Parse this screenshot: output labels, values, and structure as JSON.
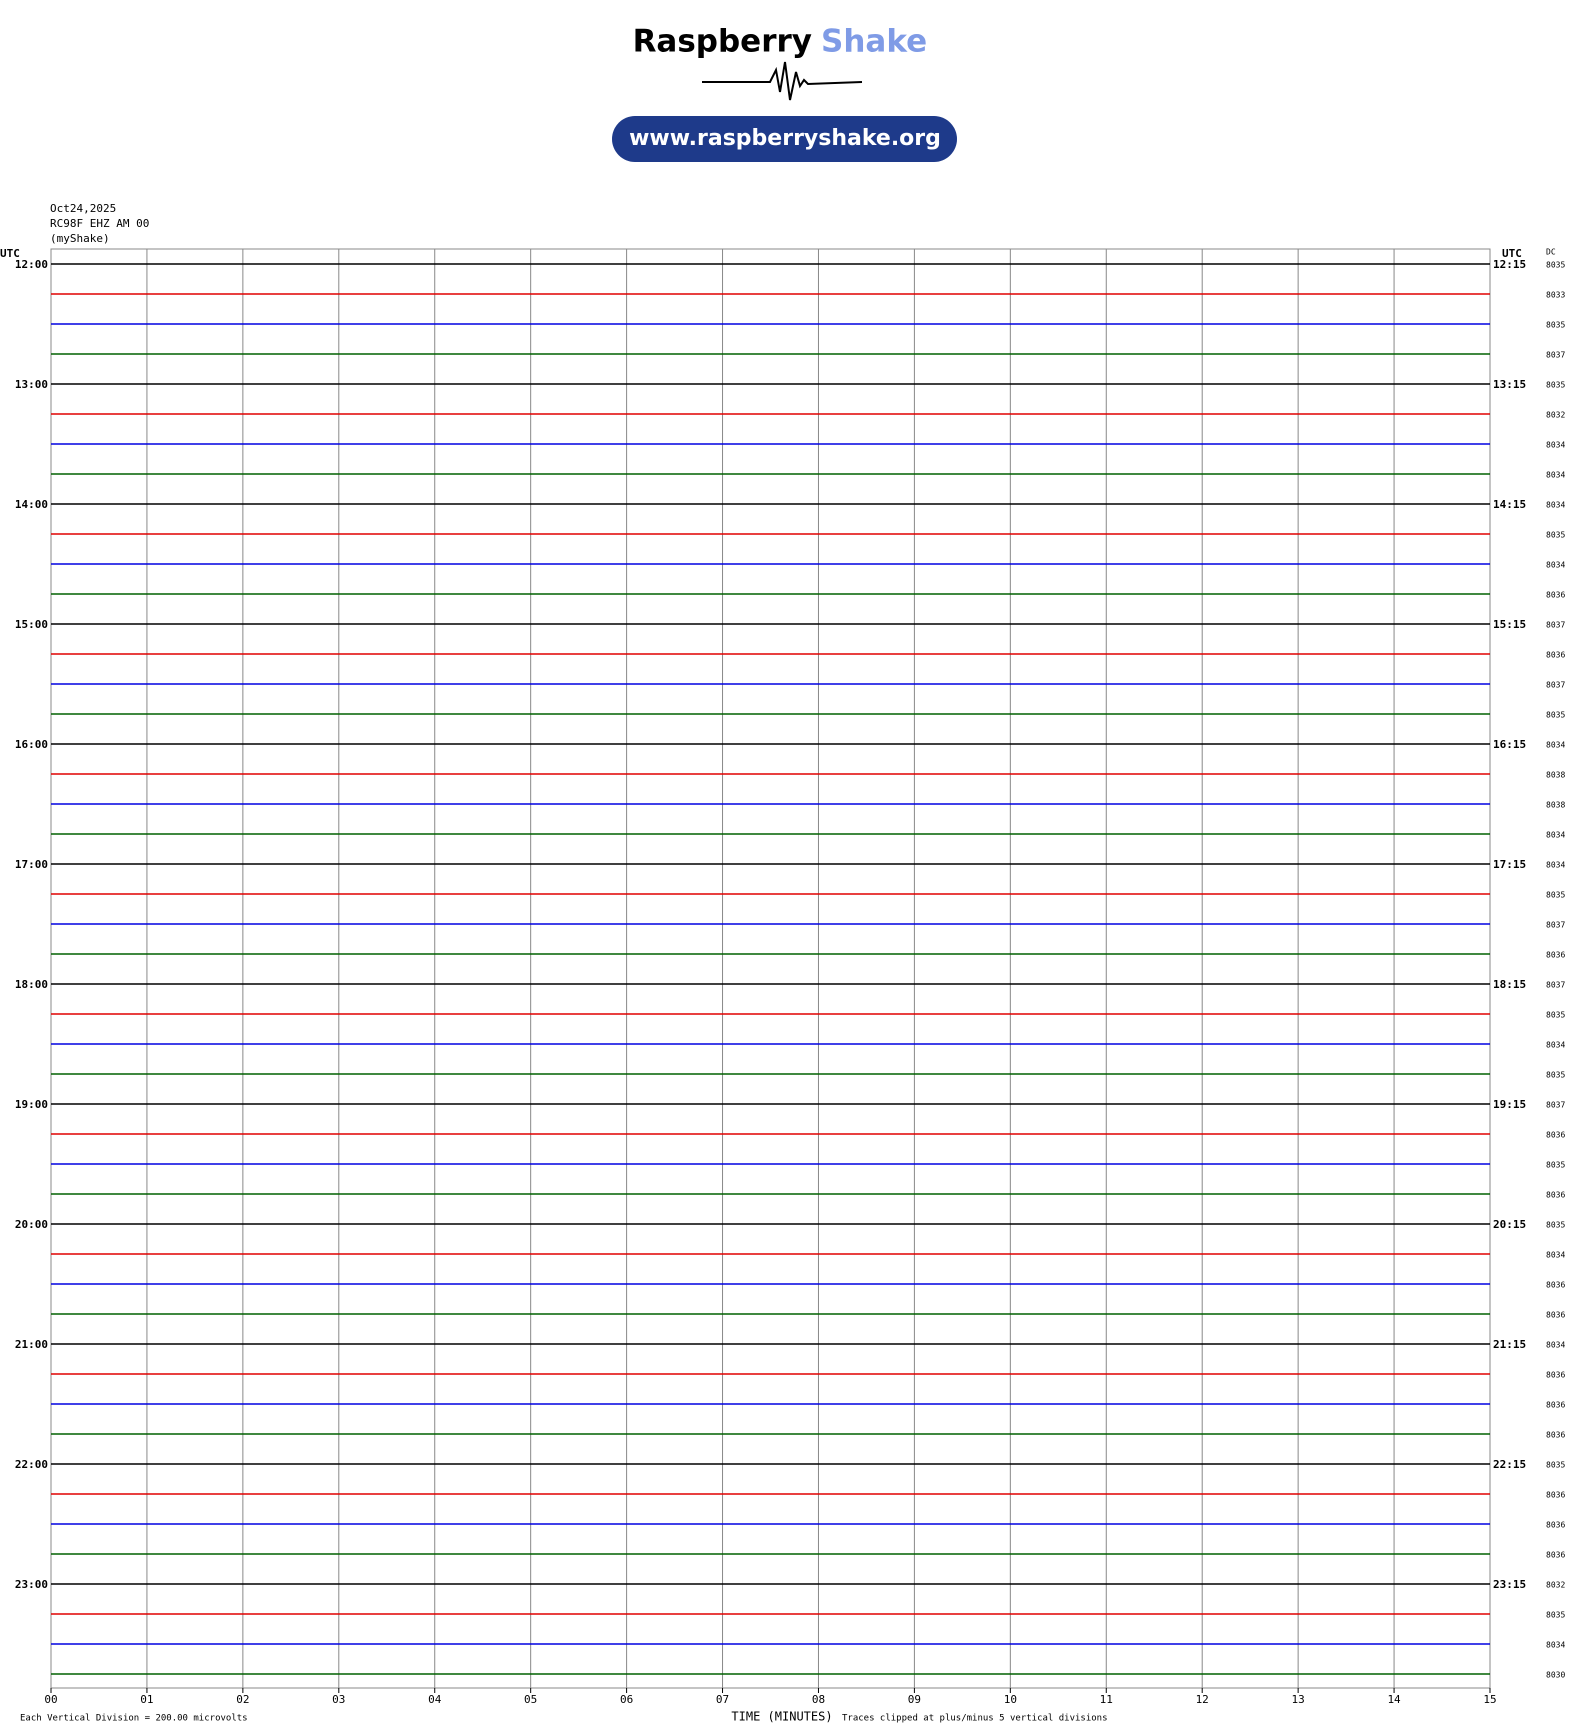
{
  "header": {
    "brand_first": "Raspberry",
    "brand_second": "Shake",
    "url": "www.raspberryshake.org"
  },
  "chart_data": {
    "type": "helicorder",
    "date": "Oct24,2025",
    "station": "RC98F EHZ AM 00",
    "network": "(myShake)",
    "left_axis_label": "UTC",
    "right_axis_label": "UTC",
    "dc_label": "DC",
    "left_labels": [
      "12:00",
      "13:00",
      "14:00",
      "15:00",
      "16:00",
      "17:00",
      "18:00",
      "19:00",
      "20:00",
      "21:00",
      "22:00",
      "23:00"
    ],
    "right_labels": [
      "12:15",
      "13:15",
      "14:15",
      "15:15",
      "16:15",
      "17:15",
      "18:15",
      "19:15",
      "20:15",
      "21:15",
      "22:15",
      "23:15"
    ],
    "dc_values": [
      8035,
      8033,
      8035,
      8037,
      8035,
      8032,
      8034,
      8034,
      8034,
      8035,
      8034,
      8036,
      8037,
      8036,
      8037,
      8035,
      8034,
      8038,
      8038,
      8034,
      8034,
      8035,
      8037,
      8036,
      8037,
      8035,
      8034,
      8035,
      8037,
      8036,
      8035,
      8036,
      8035,
      8034,
      8036,
      8036,
      8034,
      8036,
      8036,
      8036,
      8035,
      8036,
      8036,
      8036,
      8032,
      8035,
      8034,
      8030
    ],
    "trace_colors": [
      "#000000",
      "#e00000",
      "#0000e0",
      "#006000"
    ],
    "xlim": [
      0,
      15
    ],
    "xticks": [
      {
        "value": 0,
        "label": "00"
      },
      {
        "value": 1,
        "label": "01"
      },
      {
        "value": 2,
        "label": "02"
      },
      {
        "value": 3,
        "label": "03"
      },
      {
        "value": 4,
        "label": "04"
      },
      {
        "value": 5,
        "label": "05"
      },
      {
        "value": 6,
        "label": "06"
      },
      {
        "value": 7,
        "label": "07"
      },
      {
        "value": 8,
        "label": "08"
      },
      {
        "value": 9,
        "label": "09"
      },
      10,
      11,
      12,
      13,
      14,
      15
    ],
    "xlabel": "TIME (MINUTES)",
    "scale_note": "Each Vertical Division =  200.00 microvolts",
    "clip_note": "Traces clipped at plus/minus 5 vertical divisions",
    "grid": true
  }
}
